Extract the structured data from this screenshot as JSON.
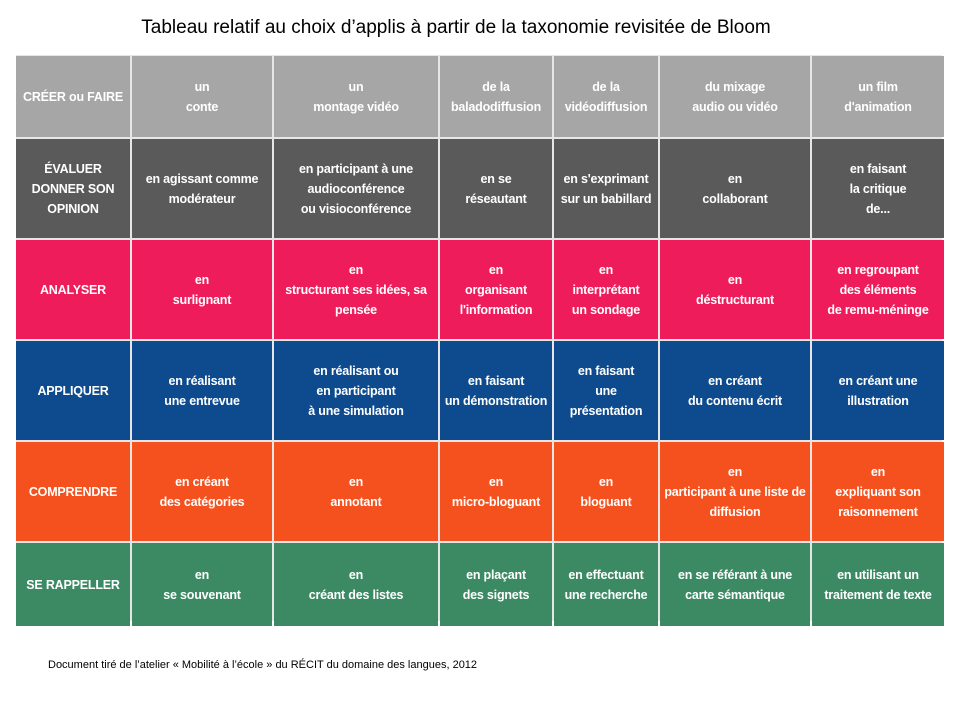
{
  "title": "Tableau relatif au choix d’applis à partir de la taxonomie revisitée de Bloom",
  "footer": "Document tiré de l’atelier « Mobilité à l’école » du RÉCIT du domaine des langues, 2012",
  "rows": [
    {
      "color": "#a6a6a6",
      "cells": [
        "CRÉER ou FAIRE",
        "un\nconte",
        "un\nmontage vidéo",
        "de la\nbaladodiffusion",
        "de la\nvidéodiffusion",
        "du mixage\naudio ou vidéo",
        "un film\nd'animation"
      ]
    },
    {
      "color": "#5a5a5a",
      "cells": [
        "ÉVALUER\nDONNER SON\nOPINION",
        "en agissant comme\nmodérateur",
        "en participant à une\naudioconférence\nou visioconférence",
        "en se\nréseautant",
        "en s'exprimant\nsur un babillard",
        "en\ncollaborant",
        "en faisant\nla critique\nde..."
      ]
    },
    {
      "color": "#ee1c5a",
      "cells": [
        "ANALYSER",
        "en\nsurlignant",
        "en\nstructurant ses idées, sa\npensée",
        "en\norganisant\nl'information",
        "en\ninterprétant\nun sondage",
        "en\ndéstructurant",
        "en regroupant\ndes éléments\nde remu-méninge"
      ]
    },
    {
      "color": "#0e4b8e",
      "cells": [
        "APPLIQUER",
        "en réalisant\nune entrevue",
        "en réalisant ou\nen participant\nà une simulation",
        "en faisant\nun démonstration",
        "en faisant\nune\nprésentation",
        "en créant\ndu contenu écrit",
        "en créant une\nillustration"
      ]
    },
    {
      "color": "#f4511e",
      "cells": [
        "COMPRENDRE",
        "en créant\ndes catégories",
        "en\nannotant",
        "en\nmicro-bloguant",
        "en\nbloguant",
        "en\nparticipant à une liste de\ndiffusion",
        "en\nexpliquant son\nraisonnement"
      ]
    },
    {
      "color": "#3c8a64",
      "cells": [
        "SE RAPPELLER",
        "en\nse souvenant",
        "en\ncréant des listes",
        "en plaçant\ndes signets",
        "en effectuant\nune recherche",
        "en se référant à une\ncarte sémantique",
        "en utilisant un\ntraitement de texte"
      ]
    }
  ]
}
